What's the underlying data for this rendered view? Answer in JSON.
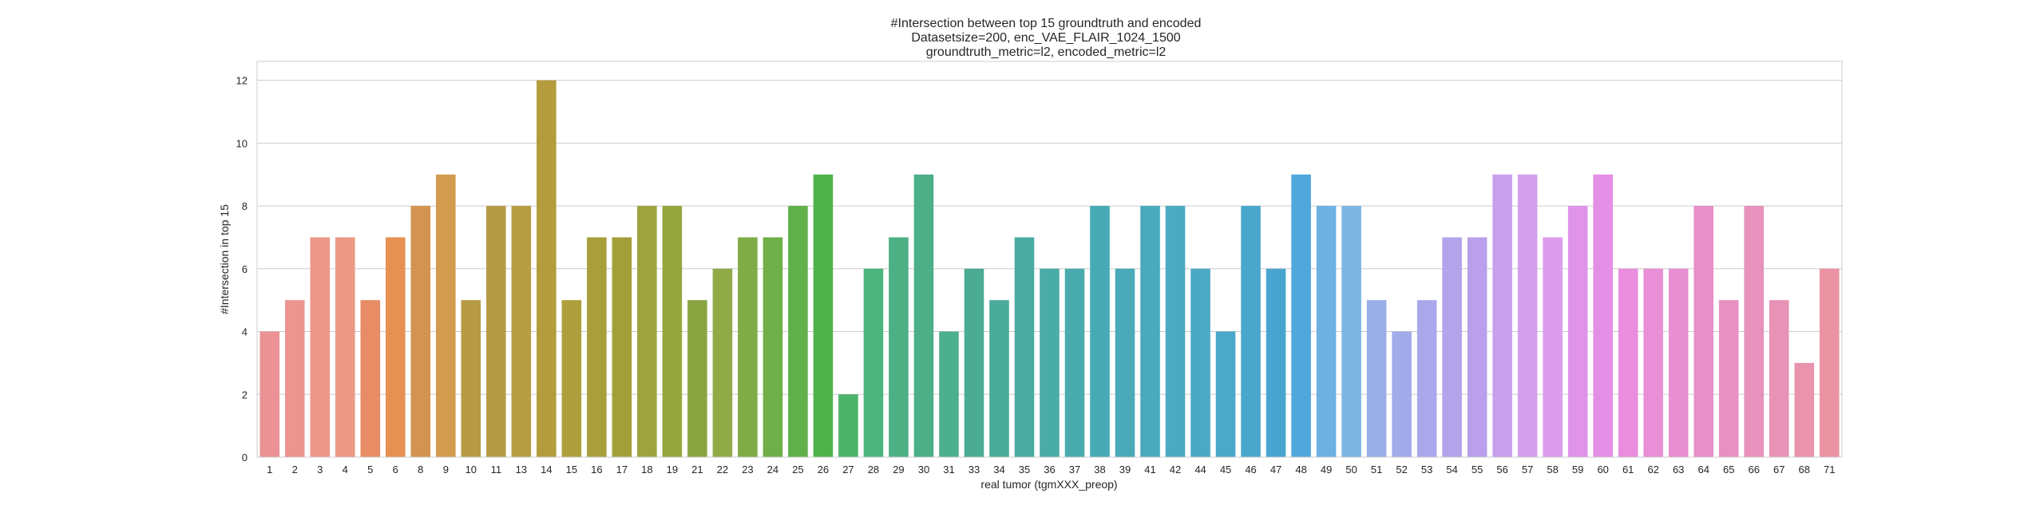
{
  "chart_data": {
    "type": "bar",
    "title": [
      "#Intersection between top 15 groundtruth and encoded",
      "Datasetsize=200, enc_VAE_FLAIR_1024_1500",
      "groundtruth_metric=l2, encoded_metric=l2"
    ],
    "xlabel": "real tumor (tgmXXX_preop)",
    "ylabel": "#Intersection in top 15",
    "ylim": [
      0,
      12.6
    ],
    "yticks": [
      0,
      2,
      4,
      6,
      8,
      10,
      12
    ],
    "grid": true,
    "categories": [
      "1",
      "2",
      "3",
      "4",
      "5",
      "6",
      "8",
      "9",
      "10",
      "11",
      "13",
      "14",
      "15",
      "16",
      "17",
      "18",
      "19",
      "21",
      "22",
      "23",
      "24",
      "25",
      "26",
      "27",
      "28",
      "29",
      "30",
      "31",
      "33",
      "34",
      "35",
      "36",
      "37",
      "38",
      "39",
      "41",
      "42",
      "44",
      "45",
      "46",
      "47",
      "48",
      "49",
      "50",
      "51",
      "52",
      "53",
      "54",
      "55",
      "56",
      "57",
      "58",
      "59",
      "60",
      "61",
      "62",
      "63",
      "64",
      "65",
      "66",
      "67",
      "68",
      "71"
    ],
    "values": [
      4,
      5,
      7,
      7,
      5,
      7,
      8,
      9,
      5,
      8,
      8,
      12,
      5,
      7,
      7,
      8,
      8,
      5,
      6,
      7,
      7,
      8,
      9,
      2,
      6,
      7,
      9,
      4,
      6,
      5,
      7,
      6,
      6,
      8,
      6,
      8,
      8,
      6,
      4,
      8,
      6,
      9,
      8,
      8,
      5,
      4,
      5,
      7,
      7,
      9,
      9,
      7,
      8,
      9,
      6,
      6,
      6,
      8,
      5,
      8,
      5,
      3,
      6
    ],
    "colors": [
      "#ea9295",
      "#eb9490",
      "#ec978a",
      "#eb9984",
      "#e88c65",
      "#e69151",
      "#d29450",
      "#d29b4d",
      "#b69a44",
      "#b69b45",
      "#b79e45",
      "#b49b3e",
      "#ae9e3c",
      "#a89f3c",
      "#a3a03c",
      "#9da33f",
      "#95a63f",
      "#88a542",
      "#90aa48",
      "#7fac47",
      "#6fae48",
      "#61b04a",
      "#4fb24b",
      "#4db26a",
      "#4cb47f",
      "#4db084",
      "#4caf87",
      "#4caf8d",
      "#4bac93",
      "#4bab9a",
      "#4aaca1",
      "#4aaca7",
      "#4aabae",
      "#48aab4",
      "#4aaab8",
      "#4aaabd",
      "#4aaac1",
      "#4aa9c4",
      "#4aa8c8",
      "#4aa7cb",
      "#49a5d0",
      "#4fa7dc",
      "#6db0e2",
      "#7db5e3",
      "#9aaee7",
      "#a2abea",
      "#aaa7eb",
      "#b3a3ea",
      "#baa0ea",
      "#c7a0ec",
      "#d3a0ec",
      "#dd9cec",
      "#df94e9",
      "#e48ee6",
      "#e88edc",
      "#e88fd8",
      "#e88fd2",
      "#e88fc9",
      "#e890c2",
      "#e891bc",
      "#e892b5",
      "#e993ac",
      "#ea94a3"
    ]
  }
}
